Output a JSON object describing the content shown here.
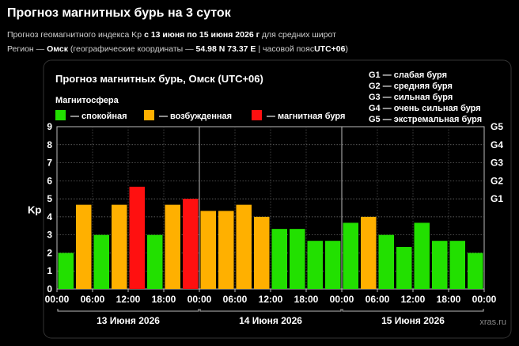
{
  "header": {
    "title": "Прогноз магнитных бурь на 3 суток",
    "line1": {
      "prefix": "Прогноз геомагнитного индекса Kp",
      "range": "с 13 июня по 15 июня 2026 г",
      "suffix": "для средних широт"
    },
    "line2": {
      "prefix": "Регион —",
      "region": "Омск",
      "coords_prefix": "(географические координаты —",
      "coords": "54.98 N 73.37 E",
      "tz_prefix": "| часовой пояс",
      "tz": "UTC+06",
      "suffix": ")"
    }
  },
  "chart_data": {
    "type": "bar",
    "title": "Прогноз магнитных бурь, Омск (UTC+06)",
    "ylabel": "Kp",
    "ylim": [
      0,
      9
    ],
    "y_ticks": [
      "0",
      "1",
      "2",
      "3",
      "4",
      "5",
      "6",
      "7",
      "8",
      "9"
    ],
    "grid": true,
    "legend_title": "Магнитосфера",
    "legend": [
      {
        "key": "calm",
        "label": "— спокойная",
        "color": "#22e000"
      },
      {
        "key": "excited",
        "label": "— возбужденная",
        "color": "#ffb000"
      },
      {
        "key": "storm",
        "label": "— магнитная буря",
        "color": "#ff1010"
      }
    ],
    "g_scale": [
      {
        "level": "G1",
        "kp": 5,
        "label": "G1 — слабая буря"
      },
      {
        "level": "G2",
        "kp": 6,
        "label": "G2 — средняя буря"
      },
      {
        "level": "G3",
        "kp": 7,
        "label": "G3 — сильная буря"
      },
      {
        "level": "G4",
        "kp": 8,
        "label": "G4 — очень сильная буря"
      },
      {
        "level": "G5",
        "kp": 9,
        "label": "G5 — экстремальная буря"
      }
    ],
    "x_ticks": [
      "00:00",
      "06:00",
      "12:00",
      "18:00",
      "00:00",
      "06:00",
      "12:00",
      "18:00",
      "00:00",
      "06:00",
      "12:00",
      "18:00",
      "00:00"
    ],
    "days": [
      {
        "label": "13 Июня 2026",
        "values": [
          2.0,
          4.67,
          3.0,
          4.67,
          5.67,
          3.0,
          4.67,
          5.0
        ]
      },
      {
        "label": "14 Июня 2026",
        "values": [
          4.33,
          4.33,
          4.67,
          4.0,
          3.33,
          3.33,
          2.67,
          2.67
        ]
      },
      {
        "label": "15 Июня 2026",
        "values": [
          3.67,
          4.0,
          3.0,
          2.33,
          3.67,
          2.67,
          2.67,
          2.0
        ]
      }
    ],
    "category_rule": {
      "calm_below": 4,
      "storm_from": 5
    }
  },
  "watermark": "xras.ru"
}
